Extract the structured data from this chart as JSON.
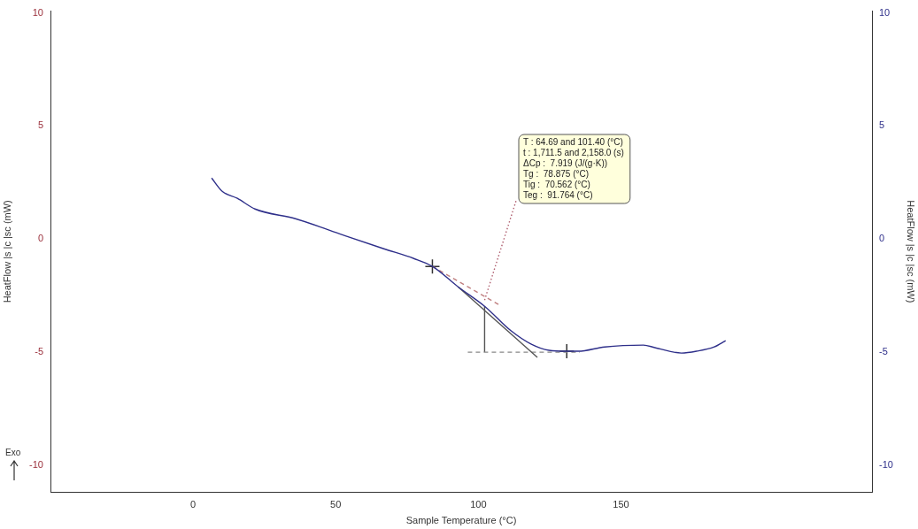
{
  "chart_data": {
    "type": "line",
    "xlabel": "Sample Temperature (°C)",
    "ylabel": "HeatFlow |s |c |sc (mW)",
    "y2label": "HeatFlow |s |c |sc (mW)",
    "xlim": [
      -50,
      238
    ],
    "xticks": [
      0,
      50,
      100,
      150
    ],
    "ylim": [
      -11.2,
      10.1
    ],
    "yticks": [
      -10,
      -5,
      0,
      5,
      10
    ],
    "y2lim": [
      -11.2,
      10.1
    ],
    "y2ticks": [
      -10,
      -5,
      0,
      5,
      10
    ],
    "grid": false,
    "legend": false,
    "series": [
      {
        "type": "line",
        "color": "#2e2f8a",
        "marker": "none",
        "x": [
          6.5,
          10.2,
          15.5,
          21.7,
          35.9,
          51.4,
          66.9,
          77.4,
          83.9,
          92.9,
          102.2,
          111.5,
          118.6,
          124.8,
          131,
          135,
          144.3,
          157.9,
          161.9,
          171.2,
          176.5,
          182.7,
          186.7
        ],
        "values": [
          2.7,
          2.11,
          1.8,
          1.33,
          0.9,
          0.23,
          -0.43,
          -0.86,
          -1.21,
          -2.11,
          -2.97,
          -4.06,
          -4.65,
          -4.92,
          -4.96,
          -4.96,
          -4.77,
          -4.69,
          -4.8,
          -5.04,
          -4.96,
          -4.77,
          -4.49
        ]
      },
      {
        "type": "line",
        "color": "#555555",
        "marker": "none",
        "x": [
          92.9,
          120.7
        ],
        "values": [
          -2.11,
          -5.23
        ]
      },
      {
        "type": "line",
        "color": "#c08080",
        "marker": "none",
        "line_style": "dashed",
        "x": [
          83.9,
          107.1
        ],
        "values": [
          -1.21,
          -2.89
        ]
      },
      {
        "type": "line",
        "color": "#888888",
        "marker": "none",
        "line_style": "dashed",
        "x": [
          96.3,
          135.6
        ],
        "values": [
          -5,
          -5
        ]
      },
      {
        "type": "line",
        "color": "#555555",
        "marker": "none",
        "x": [
          102.2,
          102.2
        ],
        "values": [
          -2.97,
          -5
        ]
      },
      {
        "type": "line",
        "color": "#b06070",
        "marker": "none",
        "line_style": "dotted",
        "x": [
          102.2,
          113.3
        ],
        "values": [
          -2.7,
          1.72
        ]
      },
      {
        "type": "scatter",
        "color": "#333333",
        "marker": "cross",
        "x": [
          83.9,
          131
        ],
        "values": [
          -1.21,
          -4.96
        ]
      }
    ],
    "annotations": [
      "T : 64.69 and 101.40 (°C)",
      "t : 1,711.5 and 2,158.0 (s)",
      "ΔCp :  7.919 (J/(g·K))",
      "Tg :  78.875 (°C)",
      "Tig :  70.562 (°C)",
      "Teg :  91.764 (°C)",
      "Exo"
    ]
  }
}
